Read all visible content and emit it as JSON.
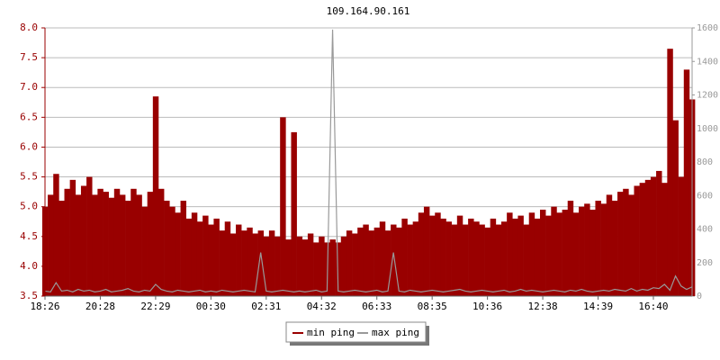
{
  "chart_data": {
    "type": "bar",
    "title": "109.164.90.161",
    "categories": [
      "18:26",
      null,
      null,
      null,
      null,
      null,
      null,
      null,
      null,
      null,
      "20:28",
      null,
      null,
      null,
      null,
      null,
      null,
      null,
      null,
      null,
      "22:29",
      null,
      null,
      null,
      null,
      null,
      null,
      null,
      null,
      null,
      "00:30",
      null,
      null,
      null,
      null,
      null,
      null,
      null,
      null,
      null,
      "02:31",
      null,
      null,
      null,
      null,
      null,
      null,
      null,
      null,
      null,
      "04:32",
      null,
      null,
      null,
      null,
      null,
      null,
      null,
      null,
      null,
      "06:33",
      null,
      null,
      null,
      null,
      null,
      null,
      null,
      null,
      null,
      "08:35",
      null,
      null,
      null,
      null,
      null,
      null,
      null,
      null,
      null,
      "10:36",
      null,
      null,
      null,
      null,
      null,
      null,
      null,
      null,
      null,
      "12:38",
      null,
      null,
      null,
      null,
      null,
      null,
      null,
      null,
      null,
      "14:39",
      null,
      null,
      null,
      null,
      null,
      null,
      null,
      null,
      null,
      "16:40",
      null,
      null,
      null,
      null,
      null,
      null,
      null
    ],
    "series": [
      {
        "name": "min ping",
        "color": "#990000",
        "values": [
          5.0,
          5.2,
          5.55,
          5.1,
          5.3,
          5.45,
          5.2,
          5.35,
          5.5,
          5.2,
          5.3,
          5.25,
          5.15,
          5.3,
          5.2,
          5.1,
          5.3,
          5.2,
          5.0,
          5.25,
          6.85,
          5.3,
          5.1,
          5.0,
          4.9,
          5.1,
          4.8,
          4.9,
          4.75,
          4.85,
          4.7,
          4.8,
          4.6,
          4.75,
          4.55,
          4.7,
          4.6,
          4.65,
          4.55,
          4.6,
          4.5,
          4.6,
          4.5,
          6.5,
          4.45,
          6.25,
          4.5,
          4.45,
          4.55,
          4.4,
          4.5,
          4.4,
          4.45,
          4.4,
          4.5,
          4.6,
          4.55,
          4.65,
          4.7,
          4.6,
          4.65,
          4.75,
          4.6,
          4.7,
          4.65,
          4.8,
          4.7,
          4.75,
          4.9,
          5.0,
          4.85,
          4.9,
          4.8,
          4.75,
          4.7,
          4.85,
          4.7,
          4.8,
          4.75,
          4.7,
          4.65,
          4.8,
          4.7,
          4.75,
          4.9,
          4.8,
          4.85,
          4.7,
          4.9,
          4.8,
          4.95,
          4.85,
          5.0,
          4.9,
          4.95,
          5.1,
          4.9,
          5.0,
          5.05,
          4.95,
          5.1,
          5.05,
          5.2,
          5.1,
          5.25,
          5.3,
          5.2,
          5.35,
          5.4,
          5.45,
          5.5,
          5.6,
          5.4,
          7.65,
          6.45,
          5.5,
          7.3,
          6.8
        ]
      },
      {
        "name": "max ping",
        "color": "#999999",
        "type": "line",
        "axis": "y2",
        "values": [
          30,
          25,
          80,
          30,
          35,
          25,
          40,
          30,
          35,
          25,
          30,
          40,
          25,
          30,
          35,
          45,
          30,
          25,
          35,
          30,
          70,
          40,
          30,
          25,
          35,
          30,
          25,
          30,
          35,
          25,
          30,
          25,
          35,
          30,
          25,
          30,
          35,
          30,
          25,
          260,
          30,
          25,
          30,
          35,
          30,
          25,
          30,
          25,
          30,
          35,
          25,
          30,
          1590,
          30,
          25,
          30,
          35,
          30,
          25,
          30,
          35,
          25,
          30,
          260,
          30,
          25,
          35,
          30,
          25,
          30,
          35,
          30,
          25,
          30,
          35,
          40,
          30,
          25,
          30,
          35,
          30,
          25,
          30,
          35,
          25,
          30,
          40,
          30,
          35,
          30,
          25,
          30,
          35,
          30,
          25,
          35,
          30,
          40,
          30,
          25,
          30,
          35,
          30,
          40,
          35,
          30,
          45,
          30,
          40,
          35,
          50,
          45,
          70,
          35,
          120,
          60,
          40,
          55
        ]
      }
    ],
    "ylim": [
      3.5,
      8
    ],
    "yticks": [
      3.5,
      {
        "value": 4,
        "label": "4.0"
      },
      4.5,
      {
        "value": 5,
        "label": "5.0"
      },
      5.5,
      {
        "value": 6,
        "label": "6.0"
      },
      6.5,
      {
        "value": 7,
        "label": "7.0"
      },
      7.5,
      {
        "value": 8,
        "label": "8.0"
      }
    ],
    "y2lim": [
      0,
      1600
    ],
    "y2ticks": [
      0,
      200,
      400,
      600,
      800,
      1000,
      1200,
      1400,
      1600
    ],
    "grid": true
  }
}
